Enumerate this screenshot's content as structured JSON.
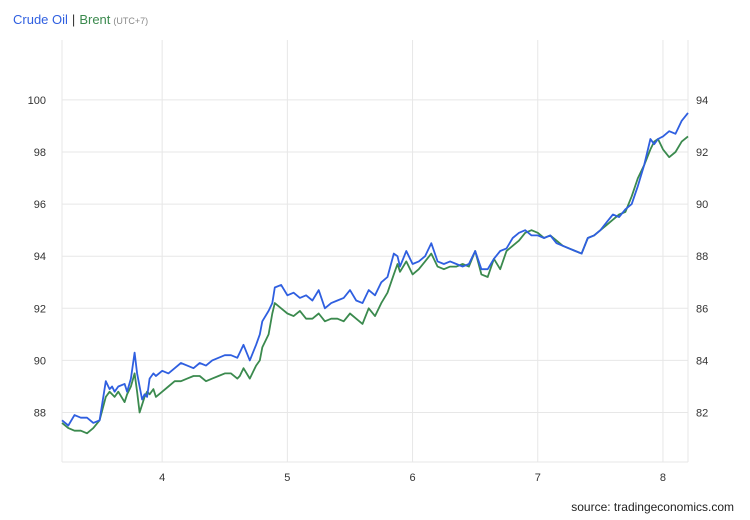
{
  "legend": {
    "series1": "Crude Oil",
    "separator": "|",
    "series2": "Brent",
    "timezone": "(UTC+7)"
  },
  "source": "source: tradingeconomics.com",
  "colors": {
    "crude": "#2f5fe0",
    "brent": "#3b8a4e",
    "grid": "#e7e7e7"
  },
  "chart_data": {
    "type": "line",
    "grid": true,
    "x_ticks": [
      "4",
      "5",
      "6",
      "7",
      "8"
    ],
    "xlim": [
      3.2,
      8.2
    ],
    "y_left_ticks": [
      "88",
      "90",
      "92",
      "94",
      "96",
      "98",
      "100"
    ],
    "ylim_left": [
      86.1,
      102.3
    ],
    "y_right_ticks": [
      "82",
      "84",
      "86",
      "88",
      "90",
      "92",
      "94"
    ],
    "ylim_right": [
      80.1,
      96.3
    ],
    "series": [
      {
        "name": "Crude Oil",
        "axis": "left",
        "x": [
          3.2,
          3.25,
          3.3,
          3.35,
          3.4,
          3.45,
          3.5,
          3.55,
          3.58,
          3.6,
          3.62,
          3.65,
          3.7,
          3.72,
          3.75,
          3.78,
          3.8,
          3.82,
          3.84,
          3.86,
          3.88,
          3.9,
          3.93,
          3.95,
          4.0,
          4.05,
          4.1,
          4.15,
          4.2,
          4.25,
          4.3,
          4.35,
          4.4,
          4.45,
          4.5,
          4.55,
          4.6,
          4.62,
          4.65,
          4.7,
          4.75,
          4.78,
          4.8,
          4.85,
          4.88,
          4.9,
          4.95,
          5.0,
          5.05,
          5.1,
          5.15,
          5.2,
          5.25,
          5.3,
          5.35,
          5.4,
          5.45,
          5.5,
          5.55,
          5.6,
          5.65,
          5.7,
          5.75,
          5.8,
          5.85,
          5.88,
          5.9,
          5.95,
          6.0,
          6.05,
          6.1,
          6.15,
          6.2,
          6.25,
          6.3,
          6.35,
          6.4,
          6.45,
          6.5,
          6.55,
          6.6,
          6.65,
          6.7,
          6.75,
          6.8,
          6.85,
          6.9,
          6.95,
          7.0,
          7.05,
          7.1,
          7.15,
          7.2,
          7.25,
          7.3,
          7.35,
          7.4,
          7.45,
          7.5,
          7.55,
          7.6,
          7.65,
          7.7,
          7.75,
          7.8,
          7.85,
          7.9,
          7.93,
          7.96,
          8.0,
          8.05,
          8.1,
          8.15,
          8.2
        ],
        "values": [
          87.7,
          87.5,
          87.9,
          87.8,
          87.8,
          87.6,
          87.7,
          89.2,
          88.9,
          89.0,
          88.8,
          89.0,
          89.1,
          88.8,
          89.3,
          90.3,
          89.5,
          89.0,
          88.5,
          88.7,
          88.6,
          89.3,
          89.5,
          89.4,
          89.6,
          89.5,
          89.7,
          89.9,
          89.8,
          89.7,
          89.9,
          89.8,
          90.0,
          90.1,
          90.2,
          90.2,
          90.1,
          90.3,
          90.6,
          90.0,
          90.6,
          91.0,
          91.5,
          91.9,
          92.2,
          92.8,
          92.9,
          92.5,
          92.6,
          92.4,
          92.5,
          92.3,
          92.7,
          92.0,
          92.2,
          92.3,
          92.4,
          92.7,
          92.3,
          92.2,
          92.7,
          92.5,
          93.0,
          93.2,
          94.1,
          94.0,
          93.6,
          94.2,
          93.7,
          93.8,
          94.0,
          94.5,
          93.8,
          93.7,
          93.8,
          93.7,
          93.6,
          93.7,
          94.2,
          93.5,
          93.5,
          93.9,
          94.2,
          94.3,
          94.7,
          94.9,
          95.0,
          94.8,
          94.8,
          94.7,
          94.8,
          94.5,
          94.4,
          94.3,
          94.2,
          94.1,
          94.7,
          94.8,
          95.0,
          95.3,
          95.6,
          95.5,
          95.8,
          96.0,
          96.7,
          97.5,
          98.5,
          98.3,
          98.5,
          98.6,
          98.8,
          98.7,
          99.2,
          99.5
        ]
      },
      {
        "name": "Brent",
        "axis": "right",
        "x": [
          3.2,
          3.25,
          3.3,
          3.35,
          3.4,
          3.45,
          3.5,
          3.55,
          3.58,
          3.6,
          3.62,
          3.65,
          3.7,
          3.72,
          3.75,
          3.78,
          3.8,
          3.82,
          3.84,
          3.86,
          3.88,
          3.9,
          3.93,
          3.95,
          4.0,
          4.05,
          4.1,
          4.15,
          4.2,
          4.25,
          4.3,
          4.35,
          4.4,
          4.45,
          4.5,
          4.55,
          4.6,
          4.62,
          4.65,
          4.7,
          4.75,
          4.78,
          4.8,
          4.85,
          4.88,
          4.9,
          4.95,
          5.0,
          5.05,
          5.1,
          5.15,
          5.2,
          5.25,
          5.3,
          5.35,
          5.4,
          5.45,
          5.5,
          5.55,
          5.6,
          5.65,
          5.7,
          5.75,
          5.8,
          5.85,
          5.88,
          5.9,
          5.95,
          6.0,
          6.05,
          6.1,
          6.15,
          6.2,
          6.25,
          6.3,
          6.35,
          6.4,
          6.45,
          6.5,
          6.55,
          6.6,
          6.65,
          6.7,
          6.75,
          6.8,
          6.85,
          6.9,
          6.95,
          7.0,
          7.05,
          7.1,
          7.15,
          7.2,
          7.25,
          7.3,
          7.35,
          7.4,
          7.45,
          7.5,
          7.55,
          7.6,
          7.65,
          7.7,
          7.75,
          7.8,
          7.85,
          7.9,
          7.93,
          7.96,
          8.0,
          8.05,
          8.1,
          8.15,
          8.2
        ],
        "values": [
          81.6,
          81.4,
          81.3,
          81.3,
          81.2,
          81.4,
          81.7,
          82.6,
          82.8,
          82.7,
          82.6,
          82.8,
          82.4,
          82.7,
          83.0,
          83.5,
          82.8,
          82.0,
          82.3,
          82.6,
          82.8,
          82.7,
          82.9,
          82.6,
          82.8,
          83.0,
          83.2,
          83.2,
          83.3,
          83.4,
          83.4,
          83.2,
          83.3,
          83.4,
          83.5,
          83.5,
          83.3,
          83.4,
          83.7,
          83.3,
          83.8,
          84.0,
          84.5,
          85.0,
          85.8,
          86.2,
          86.0,
          85.8,
          85.7,
          85.9,
          85.6,
          85.6,
          85.8,
          85.5,
          85.6,
          85.6,
          85.5,
          85.8,
          85.6,
          85.4,
          86.0,
          85.7,
          86.2,
          86.6,
          87.3,
          87.7,
          87.4,
          87.8,
          87.3,
          87.5,
          87.8,
          88.1,
          87.6,
          87.5,
          87.6,
          87.6,
          87.7,
          87.6,
          88.2,
          87.3,
          87.2,
          87.9,
          87.5,
          88.2,
          88.4,
          88.6,
          88.9,
          89.0,
          88.9,
          88.7,
          88.8,
          88.6,
          88.4,
          88.3,
          88.2,
          88.1,
          88.7,
          88.8,
          89.0,
          89.2,
          89.4,
          89.6,
          89.7,
          90.3,
          91.0,
          91.5,
          92.1,
          92.4,
          92.5,
          92.1,
          91.8,
          92.0,
          92.4,
          92.6
        ]
      }
    ]
  }
}
